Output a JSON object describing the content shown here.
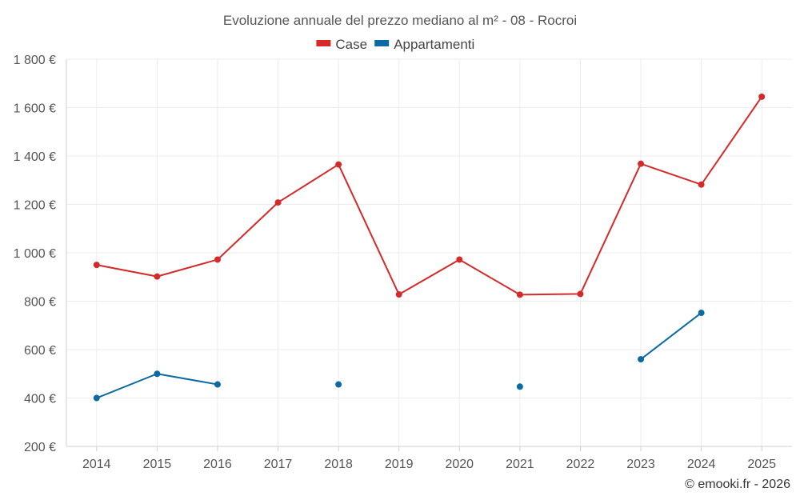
{
  "chart_data": {
    "type": "line",
    "title": "Evoluzione annuale del prezzo mediano al m² - 08 - Rocroi",
    "categories": [
      "2014",
      "2015",
      "2016",
      "2017",
      "2018",
      "2019",
      "2020",
      "2021",
      "2022",
      "2023",
      "2024",
      "2025"
    ],
    "series": [
      {
        "name": "Case",
        "color": "#d42a2a",
        "values": [
          950,
          902,
          972,
          1208,
          1365,
          828,
          972,
          827,
          830,
          1368,
          1282,
          1645
        ]
      },
      {
        "name": "Appartamenti",
        "color": "#0a6aa1",
        "values": [
          400,
          500,
          456,
          null,
          456,
          null,
          null,
          447,
          null,
          560,
          752,
          null
        ]
      }
    ],
    "ylim": [
      200,
      1800
    ],
    "yticks": [
      200,
      400,
      600,
      800,
      1000,
      1200,
      1400,
      1600,
      1800
    ],
    "ytick_labels": [
      "200 €",
      "400 €",
      "600 €",
      "800 €",
      "1 000 €",
      "1 200 €",
      "1 400 €",
      "1 600 €",
      "1 800 €"
    ],
    "xlabel": "",
    "ylabel": "",
    "legend_position": "top-center",
    "grid": true
  },
  "credit": "© emooki.fr - 2026"
}
